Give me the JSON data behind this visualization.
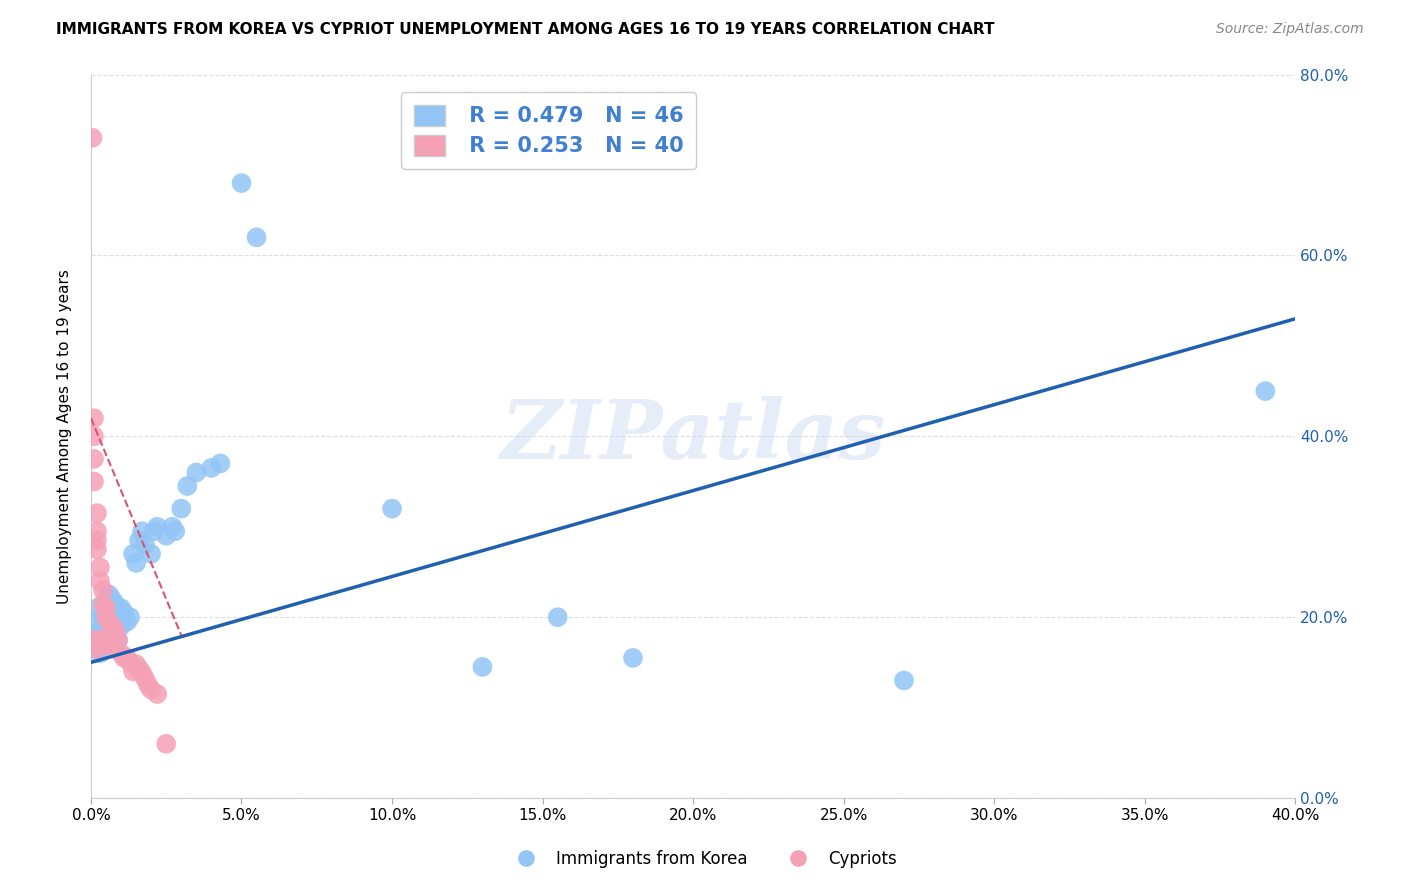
{
  "title": "IMMIGRANTS FROM KOREA VS CYPRIOT UNEMPLOYMENT AMONG AGES 16 TO 19 YEARS CORRELATION CHART",
  "source": "Source: ZipAtlas.com",
  "ylabel": "Unemployment Among Ages 16 to 19 years",
  "xlim": [
    0.0,
    0.4
  ],
  "ylim": [
    0.0,
    0.8
  ],
  "xticks": [
    0.0,
    0.05,
    0.1,
    0.15,
    0.2,
    0.25,
    0.3,
    0.35,
    0.4
  ],
  "yticks": [
    0.0,
    0.2,
    0.4,
    0.6,
    0.8
  ],
  "blue_color": "#92C5F5",
  "pink_color": "#F5A0B5",
  "blue_line_color": "#2060B0",
  "pink_line_color": "#E05070",
  "legend_text_color": "#4080D0",
  "R_blue": 0.479,
  "N_blue": 46,
  "R_pink": 0.253,
  "N_pink": 40,
  "blue_scatter_x": [
    0.001,
    0.001,
    0.002,
    0.002,
    0.002,
    0.003,
    0.003,
    0.004,
    0.004,
    0.005,
    0.005,
    0.006,
    0.006,
    0.007,
    0.007,
    0.008,
    0.009,
    0.01,
    0.01,
    0.011,
    0.012,
    0.013,
    0.014,
    0.015,
    0.016,
    0.017,
    0.018,
    0.02,
    0.021,
    0.022,
    0.025,
    0.027,
    0.028,
    0.03,
    0.032,
    0.035,
    0.04,
    0.043,
    0.05,
    0.055,
    0.1,
    0.13,
    0.155,
    0.18,
    0.27,
    0.39
  ],
  "blue_scatter_y": [
    0.175,
    0.195,
    0.18,
    0.165,
    0.21,
    0.16,
    0.185,
    0.175,
    0.2,
    0.17,
    0.195,
    0.215,
    0.225,
    0.22,
    0.21,
    0.215,
    0.175,
    0.19,
    0.21,
    0.205,
    0.195,
    0.2,
    0.27,
    0.26,
    0.285,
    0.295,
    0.28,
    0.27,
    0.295,
    0.3,
    0.29,
    0.3,
    0.295,
    0.32,
    0.345,
    0.36,
    0.365,
    0.37,
    0.68,
    0.62,
    0.32,
    0.145,
    0.2,
    0.155,
    0.13,
    0.45
  ],
  "pink_scatter_x": [
    0.0005,
    0.0005,
    0.001,
    0.001,
    0.001,
    0.001,
    0.001,
    0.002,
    0.002,
    0.002,
    0.002,
    0.002,
    0.003,
    0.003,
    0.003,
    0.004,
    0.004,
    0.004,
    0.005,
    0.005,
    0.006,
    0.006,
    0.007,
    0.007,
    0.008,
    0.008,
    0.009,
    0.01,
    0.011,
    0.012,
    0.013,
    0.014,
    0.015,
    0.016,
    0.017,
    0.018,
    0.019,
    0.02,
    0.022,
    0.025
  ],
  "pink_scatter_y": [
    0.73,
    0.175,
    0.42,
    0.4,
    0.375,
    0.35,
    0.17,
    0.315,
    0.295,
    0.285,
    0.275,
    0.165,
    0.255,
    0.24,
    0.175,
    0.23,
    0.215,
    0.17,
    0.21,
    0.2,
    0.195,
    0.175,
    0.19,
    0.17,
    0.185,
    0.165,
    0.175,
    0.16,
    0.155,
    0.155,
    0.15,
    0.14,
    0.148,
    0.143,
    0.138,
    0.132,
    0.125,
    0.12,
    0.115,
    0.06
  ],
  "watermark": "ZIPatlas",
  "background_color": "#ffffff",
  "grid_color": "#DDDDE8"
}
